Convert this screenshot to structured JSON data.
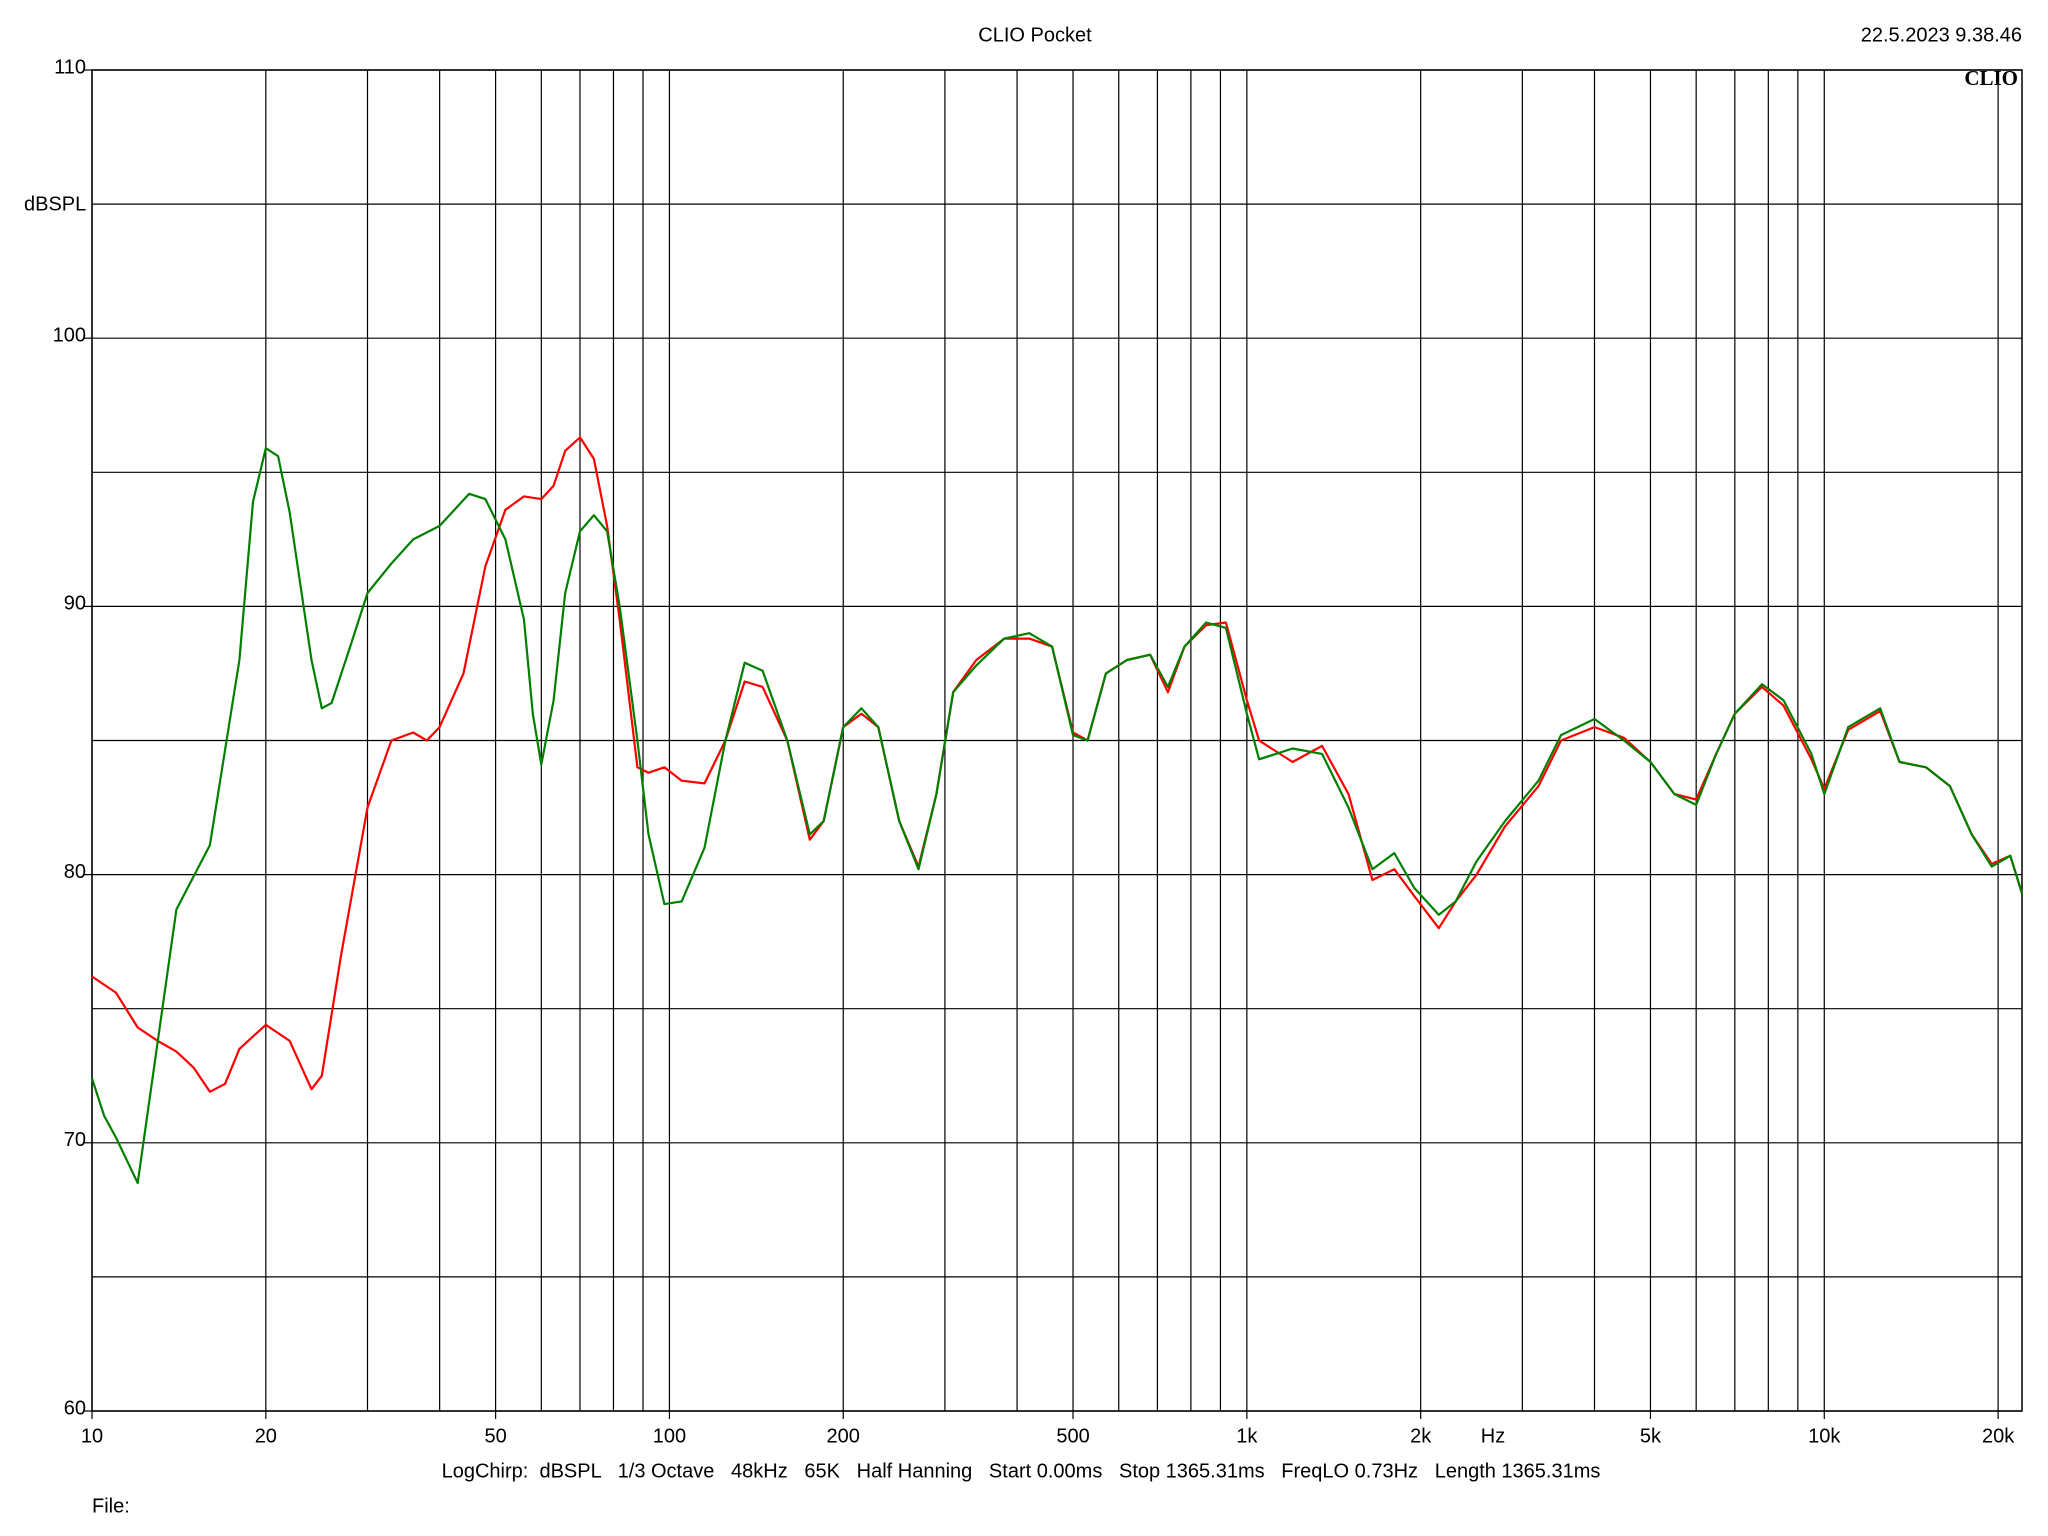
{
  "chart_data": {
    "type": "line",
    "title": "CLIO Pocket",
    "timestamp": "22.5.2023 9.38.46",
    "logo": "CLIO",
    "y_label": "dBSPL",
    "x_label": "Hz",
    "footer": "LogChirp:  dBSPL   1/3 Octave   48kHz   65K   Half Hanning   Start 0.00ms   Stop 1365.31ms   FreqLO 0.73Hz   Length 1365.31ms",
    "file_label": "File:",
    "xscale": "log",
    "grid": true,
    "xlim": [
      10,
      22000
    ],
    "ylim": [
      60,
      110
    ],
    "xticks": [
      10,
      20,
      50,
      100,
      200,
      500,
      {
        "value": 1000,
        "label": "1k"
      },
      {
        "value": 2000,
        "label": "2k"
      },
      {
        "value": 5000,
        "label": "5k"
      },
      {
        "value": 10000,
        "label": "10k"
      },
      {
        "value": 20000,
        "label": "20k"
      }
    ],
    "xminor": [
      30,
      40,
      60,
      70,
      80,
      90,
      300,
      400,
      600,
      700,
      800,
      900,
      3000,
      4000,
      6000,
      7000,
      8000,
      9000
    ],
    "yticks": [
      60,
      70,
      80,
      90,
      100,
      110
    ],
    "yminor": [
      65,
      75,
      85,
      95,
      105
    ],
    "series": [
      {
        "color": "#ff0000",
        "x": [
          10,
          11,
          12,
          13,
          14,
          15,
          16,
          17,
          18,
          20,
          22,
          24,
          25,
          27,
          30,
          33,
          36,
          38,
          40,
          44,
          48,
          52,
          56,
          60,
          63,
          66,
          70,
          74,
          78,
          82,
          88,
          92,
          98,
          105,
          115,
          125,
          135,
          145,
          160,
          175,
          185,
          200,
          215,
          230,
          250,
          270,
          290,
          310,
          340,
          380,
          420,
          460,
          500,
          530,
          570,
          620,
          680,
          730,
          780,
          850,
          920,
          1000,
          1050,
          1200,
          1350,
          1500,
          1650,
          1800,
          1950,
          2150,
          2300,
          2500,
          2800,
          3200,
          3500,
          4000,
          4500,
          5000,
          5500,
          6000,
          6500,
          7000,
          7800,
          8500,
          9500,
          10000,
          11000,
          12500,
          13500,
          15000,
          16500,
          18000,
          19500,
          21000,
          22000
        ],
        "values": [
          76.2,
          75.6,
          74.3,
          73.8,
          73.4,
          72.8,
          71.9,
          72.2,
          73.5,
          74.4,
          73.8,
          72.0,
          72.5,
          77,
          82.5,
          85,
          85.3,
          85,
          85.5,
          87.5,
          91.5,
          93.6,
          94.1,
          94,
          94.5,
          95.8,
          96.3,
          95.5,
          93,
          89.5,
          84,
          83.8,
          84,
          83.5,
          83.4,
          85,
          87.2,
          87,
          85,
          81.3,
          82,
          85.5,
          86,
          85.5,
          82,
          80.3,
          83,
          86.8,
          88,
          88.8,
          88.8,
          88.5,
          85.3,
          85,
          87.5,
          88,
          88.2,
          86.8,
          88.5,
          89.3,
          89.4,
          86.5,
          85,
          84.2,
          84.8,
          83,
          79.8,
          80.2,
          79.2,
          78,
          79,
          80,
          81.8,
          83.3,
          85,
          85.5,
          85.1,
          84.2,
          83,
          82.8,
          84.5,
          86,
          87,
          86.3,
          84.3,
          83.2,
          85.4,
          86.1,
          84.2,
          84,
          83.3,
          81.5,
          80.4,
          80.7,
          79.3
        ]
      },
      {
        "color": "#008000",
        "x": [
          10,
          10.5,
          11,
          12,
          14,
          16,
          18,
          19,
          20,
          21,
          22,
          24,
          25,
          26,
          28,
          30,
          33,
          36,
          40,
          45,
          48,
          52,
          56,
          58,
          60,
          63,
          66,
          70,
          74,
          78,
          82,
          88,
          92,
          98,
          105,
          115,
          125,
          135,
          145,
          160,
          175,
          185,
          200,
          215,
          230,
          250,
          270,
          290,
          310,
          340,
          380,
          420,
          460,
          500,
          530,
          570,
          620,
          680,
          730,
          780,
          850,
          920,
          1000,
          1050,
          1200,
          1350,
          1500,
          1650,
          1800,
          1950,
          2150,
          2300,
          2500,
          2800,
          3200,
          3500,
          4000,
          4500,
          5000,
          5500,
          6000,
          6500,
          7000,
          7800,
          8500,
          9500,
          10000,
          11000,
          12500,
          13500,
          15000,
          16500,
          18000,
          19500,
          21000,
          22000
        ],
        "values": [
          72.4,
          71,
          70.2,
          68.5,
          78.7,
          81.1,
          88,
          93.9,
          95.9,
          95.6,
          93.5,
          88,
          86.2,
          86.4,
          88.5,
          90.5,
          91.6,
          92.5,
          93,
          94.2,
          94,
          92.5,
          89.5,
          86,
          84.1,
          86.5,
          90.5,
          92.8,
          93.4,
          92.8,
          90,
          85,
          81.5,
          78.9,
          79,
          81,
          85,
          87.9,
          87.6,
          85,
          81.5,
          82,
          85.5,
          86.2,
          85.5,
          82,
          80.2,
          83,
          86.8,
          87.8,
          88.8,
          89,
          88.5,
          85.2,
          85,
          87.5,
          88,
          88.2,
          87,
          88.5,
          89.4,
          89.2,
          86,
          84.3,
          84.7,
          84.5,
          82.5,
          80.2,
          80.8,
          79.5,
          78.5,
          79,
          80.5,
          82,
          83.5,
          85.2,
          85.8,
          85,
          84.2,
          83,
          82.6,
          84.5,
          86,
          87.1,
          86.5,
          84.5,
          83,
          85.5,
          86.2,
          84.2,
          84,
          83.3,
          81.5,
          80.3,
          80.7,
          79.3
        ]
      }
    ]
  }
}
